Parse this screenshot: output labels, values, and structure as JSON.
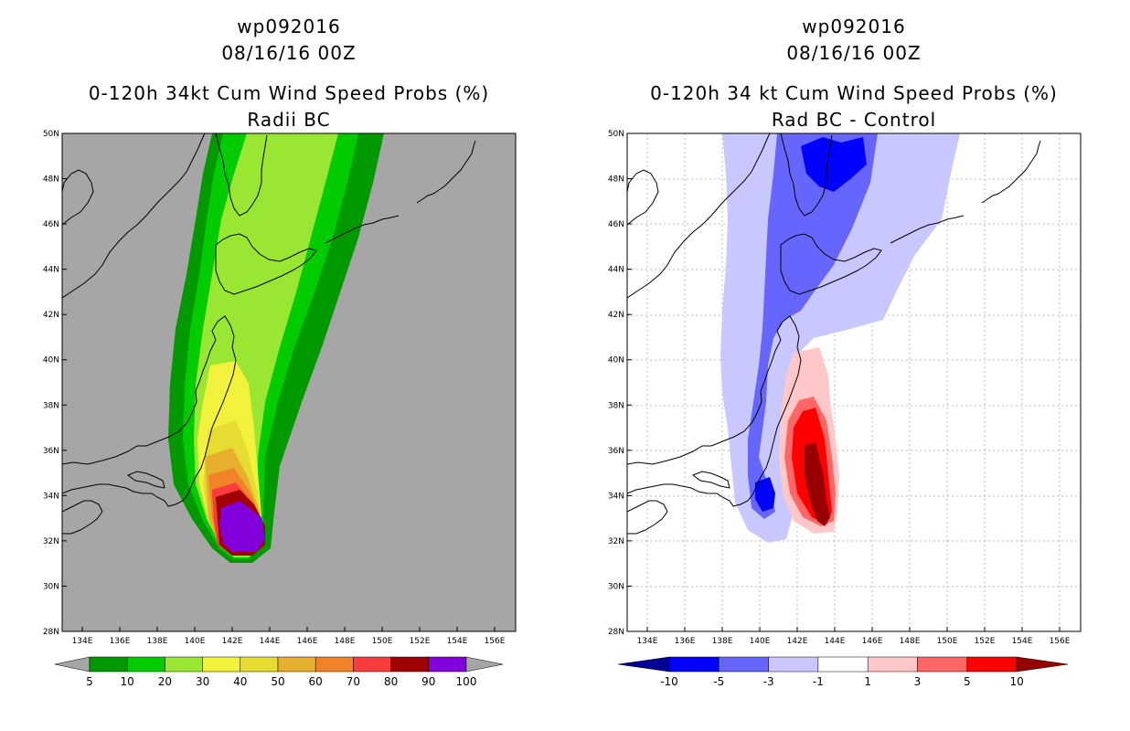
{
  "left_panel": {
    "storm_id": "wp092016",
    "datetime": "08/16/16 00Z",
    "title": "0-120h 34kt Cum Wind Speed Probs (%)",
    "subtitle": "Radii BC",
    "colorbar": {
      "labels": [
        "5",
        "10",
        "20",
        "30",
        "40",
        "50",
        "60",
        "70",
        "80",
        "90",
        "100"
      ],
      "colors": [
        "#009900",
        "#00cc00",
        "#99e633",
        "#f2f23d",
        "#e6dc32",
        "#e6af2d",
        "#f08228",
        "#fa3c3c",
        "#a00000",
        "#8200dc"
      ]
    }
  },
  "right_panel": {
    "storm_id": "wp092016",
    "datetime": "08/16/16 00Z",
    "title": "0-120h 34 kt Cum Wind Speed Probs (%)",
    "subtitle": "Rad BC - Control",
    "colorbar": {
      "labels": [
        "-10",
        "-5",
        "-3",
        "-1",
        "1",
        "3",
        "5",
        "10"
      ],
      "colors": [
        "#000096",
        "#0000ff",
        "#6666ff",
        "#c8c8ff",
        "#ffffff",
        "#ffc8c8",
        "#ff6666",
        "#ff0000",
        "#960000"
      ]
    }
  },
  "axes": {
    "lon_ticks": [
      "134E",
      "136E",
      "138E",
      "140E",
      "142E",
      "144E",
      "146E",
      "148E",
      "150E",
      "152E",
      "154E",
      "156E"
    ],
    "lat_ticks": [
      "28N",
      "30N",
      "32N",
      "34N",
      "36N",
      "38N",
      "40N",
      "42N",
      "44N",
      "46N",
      "48N",
      "50N"
    ]
  }
}
